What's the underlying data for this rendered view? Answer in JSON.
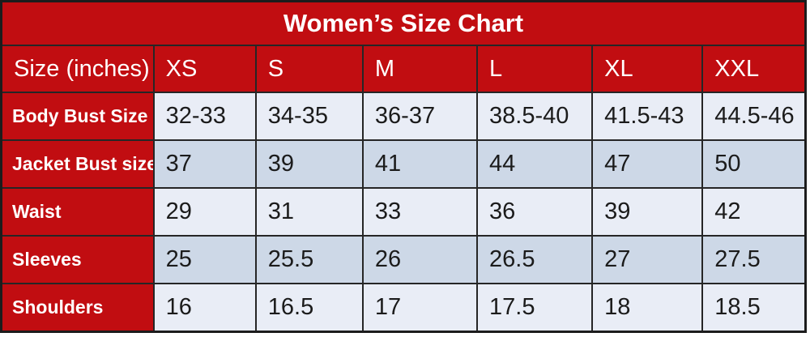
{
  "title": "Women’s Size Chart",
  "chart_data": {
    "type": "table",
    "title": "Women’s Size Chart",
    "unit_label": "Size (inches)",
    "columns": [
      "XS",
      "S",
      "M",
      "L",
      "XL",
      "XXL"
    ],
    "rows": [
      {
        "label": "Body Bust Size",
        "values": [
          "32-33",
          "34-35",
          "36-37",
          "38.5-40",
          "41.5-43",
          "44.5-46"
        ]
      },
      {
        "label": "Jacket Bust size",
        "values": [
          "37",
          "39",
          "41",
          "44",
          "47",
          "50"
        ]
      },
      {
        "label": "Waist",
        "values": [
          "29",
          "31",
          "33",
          "36",
          "39",
          "42"
        ]
      },
      {
        "label": "Sleeves",
        "values": [
          "25",
          "25.5",
          "26",
          "26.5",
          "27",
          "27.5"
        ]
      },
      {
        "label": "Shoulders",
        "values": [
          "16",
          "16.5",
          "17",
          "17.5",
          "18",
          "18.5"
        ]
      }
    ],
    "layout": {
      "header_background": "#c10d11",
      "header_text_color": "#ffffff",
      "row_light_background": "#e9edf6",
      "row_dark_background": "#cdd8e7",
      "border_color": "#262626",
      "data_text_color": "#1b1b1b"
    }
  }
}
